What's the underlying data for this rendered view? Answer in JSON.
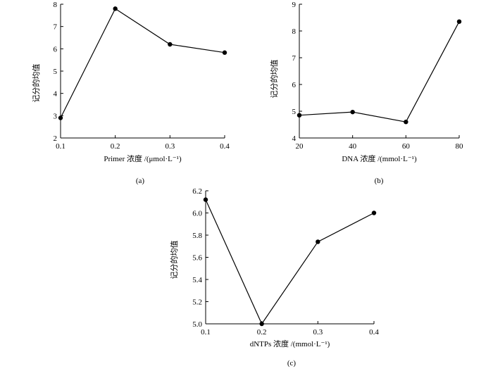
{
  "chart_data": [
    {
      "id": "a",
      "type": "line",
      "panel_label": "(a)",
      "xlabel": "Primer 浓度 /(μmol·L⁻¹)",
      "ylabel": "记分的均值",
      "x_ticks": [
        "0.1",
        "0.2",
        "0.3",
        "0.4"
      ],
      "y_ticks": [
        "2",
        "3",
        "4",
        "5",
        "6",
        "7",
        "8"
      ],
      "xlim": [
        0.1,
        0.4
      ],
      "ylim": [
        2,
        8
      ],
      "x": [
        0.1,
        0.2,
        0.3,
        0.4
      ],
      "values": [
        2.9,
        7.8,
        6.2,
        5.83
      ]
    },
    {
      "id": "b",
      "type": "line",
      "panel_label": "(b)",
      "xlabel": "DNA 浓度 /(mmol·L⁻¹)",
      "ylabel": "记分的均值",
      "x_ticks": [
        "20",
        "40",
        "60",
        "80"
      ],
      "y_ticks": [
        "4",
        "5",
        "6",
        "7",
        "8",
        "9"
      ],
      "xlim": [
        20,
        80
      ],
      "ylim": [
        4,
        9
      ],
      "x": [
        20,
        40,
        60,
        80
      ],
      "values": [
        4.85,
        4.97,
        4.6,
        8.35
      ]
    },
    {
      "id": "c",
      "type": "line",
      "panel_label": "(c)",
      "xlabel": "dNTPs 浓度 /(mmol·L⁻¹)",
      "ylabel": "记分的均值",
      "x_ticks": [
        "0.1",
        "0.2",
        "0.3",
        "0.4"
      ],
      "y_ticks": [
        "5.0",
        "5.2",
        "5.4",
        "5.6",
        "5.8",
        "6.0",
        "6.2"
      ],
      "xlim": [
        0.1,
        0.4
      ],
      "ylim": [
        5.0,
        6.2
      ],
      "x": [
        0.1,
        0.2,
        0.3,
        0.4
      ],
      "values": [
        6.12,
        5.0,
        5.74,
        6.0
      ]
    }
  ]
}
